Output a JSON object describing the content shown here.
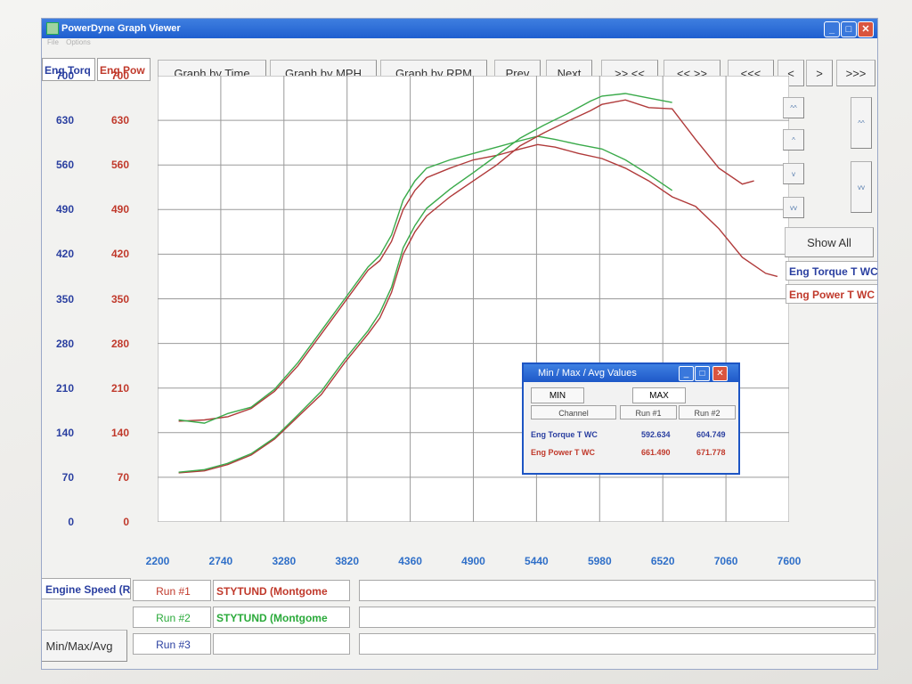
{
  "window": {
    "title": "PowerDyne Graph Viewer",
    "menu": [
      "File",
      "Options"
    ],
    "controls": {
      "minimize": "_",
      "maximize": "□",
      "close": "✕"
    }
  },
  "toolbar": {
    "graph_by_time": "Graph by Time",
    "graph_by_mph": "Graph by MPH",
    "graph_by_rpm": "Graph by RPM",
    "prev": "Prev",
    "next": "Next",
    "zoom_in": ">> <<",
    "zoom_out": "<< >>",
    "scroll_far_left": "<<<",
    "scroll_left": "<",
    "scroll_right": ">",
    "scroll_far_right": ">>>"
  },
  "axis_headers": {
    "left_torque": "Eng Torq",
    "left_power": "Eng Pow"
  },
  "side_controls": {
    "show_all": "Show All",
    "up_up_label": "^^",
    "up_label": "^",
    "down_label": "v",
    "down_down_label": "vv"
  },
  "channels": {
    "torque": "Eng Torque T WC",
    "power": "Eng Power T WC"
  },
  "bottom": {
    "x_channel": "Engine Speed (RI",
    "minmax_button": "Min/Max/Avg",
    "runs": [
      {
        "label": "Run #1",
        "file": "STYTUND (Montgome"
      },
      {
        "label": "Run #2",
        "file": "STYTUND (Montgome"
      },
      {
        "label": "Run #3",
        "file": ""
      }
    ]
  },
  "minmax": {
    "title": "Min / Max / Avg Values",
    "tab_min": "MIN",
    "tab_max": "MAX",
    "col_channel": "Channel",
    "col_run1": "Run #1",
    "col_run2": "Run #2",
    "rows": [
      {
        "channel": "Eng Torque T WC",
        "run1": "592.634",
        "run2": "604.749"
      },
      {
        "channel": "Eng Power T WC",
        "run1": "661.490",
        "run2": "671.778"
      }
    ]
  },
  "colors": {
    "torque_axis": "#2a3fa0",
    "power_axis": "#c0392b",
    "run1": "#b03a3a",
    "run2": "#3aaa4a",
    "grid": "#9a9a9a",
    "xtick": "#2f6fc8"
  },
  "chart_data": {
    "type": "line",
    "x_ticks": [
      "2200",
      "2740",
      "3280",
      "3820",
      "4360",
      "4900",
      "5440",
      "5980",
      "6520",
      "7060",
      "7600"
    ],
    "y_ticks_left_torque": [
      "0",
      "70",
      "140",
      "210",
      "280",
      "350",
      "420",
      "490",
      "560",
      "630",
      "700"
    ],
    "y_ticks_left_power": [
      "0",
      "70",
      "140",
      "210",
      "280",
      "350",
      "420",
      "490",
      "560",
      "630",
      "700"
    ],
    "xlim": [
      2200,
      7600
    ],
    "ylim": [
      0,
      700
    ],
    "grid": true,
    "series": [
      {
        "name": "Run #1",
        "channel": "Eng Torque T WC",
        "color": "#b03a3a",
        "points": [
          [
            2380,
            158
          ],
          [
            2600,
            160
          ],
          [
            2800,
            165
          ],
          [
            3000,
            178
          ],
          [
            3200,
            205
          ],
          [
            3400,
            245
          ],
          [
            3600,
            295
          ],
          [
            3800,
            345
          ],
          [
            4000,
            395
          ],
          [
            4100,
            410
          ],
          [
            4200,
            440
          ],
          [
            4300,
            490
          ],
          [
            4400,
            520
          ],
          [
            4500,
            540
          ],
          [
            4700,
            555
          ],
          [
            4900,
            568
          ],
          [
            5100,
            575
          ],
          [
            5300,
            585
          ],
          [
            5450,
            592
          ],
          [
            5600,
            588
          ],
          [
            5800,
            578
          ],
          [
            6000,
            570
          ],
          [
            6200,
            555
          ],
          [
            6400,
            535
          ],
          [
            6600,
            510
          ],
          [
            6800,
            495
          ],
          [
            7000,
            460
          ],
          [
            7200,
            415
          ],
          [
            7400,
            390
          ],
          [
            7500,
            385
          ]
        ]
      },
      {
        "name": "Run #2",
        "channel": "Eng Torque T WC",
        "color": "#3aaa4a",
        "points": [
          [
            2380,
            160
          ],
          [
            2600,
            155
          ],
          [
            2800,
            170
          ],
          [
            3000,
            180
          ],
          [
            3200,
            208
          ],
          [
            3400,
            250
          ],
          [
            3600,
            300
          ],
          [
            3800,
            350
          ],
          [
            4000,
            400
          ],
          [
            4100,
            418
          ],
          [
            4200,
            450
          ],
          [
            4300,
            505
          ],
          [
            4400,
            535
          ],
          [
            4500,
            555
          ],
          [
            4700,
            568
          ],
          [
            4900,
            578
          ],
          [
            5100,
            588
          ],
          [
            5300,
            598
          ],
          [
            5450,
            605
          ],
          [
            5600,
            600
          ],
          [
            5800,
            592
          ],
          [
            6000,
            585
          ],
          [
            6200,
            568
          ],
          [
            6400,
            545
          ],
          [
            6600,
            520
          ]
        ]
      },
      {
        "name": "Run #1",
        "channel": "Eng Power T WC",
        "color": "#b03a3a",
        "points": [
          [
            2380,
            77
          ],
          [
            2600,
            80
          ],
          [
            2800,
            90
          ],
          [
            3000,
            105
          ],
          [
            3200,
            130
          ],
          [
            3400,
            165
          ],
          [
            3600,
            200
          ],
          [
            3800,
            250
          ],
          [
            4000,
            295
          ],
          [
            4100,
            320
          ],
          [
            4200,
            360
          ],
          [
            4300,
            420
          ],
          [
            4400,
            455
          ],
          [
            4500,
            480
          ],
          [
            4700,
            510
          ],
          [
            4900,
            535
          ],
          [
            5100,
            560
          ],
          [
            5300,
            590
          ],
          [
            5500,
            610
          ],
          [
            5700,
            628
          ],
          [
            5900,
            645
          ],
          [
            6000,
            655
          ],
          [
            6200,
            662
          ],
          [
            6400,
            650
          ],
          [
            6600,
            648
          ],
          [
            6800,
            600
          ],
          [
            7000,
            555
          ],
          [
            7200,
            530
          ],
          [
            7300,
            535
          ]
        ]
      },
      {
        "name": "Run #2",
        "channel": "Eng Power T WC",
        "color": "#3aaa4a",
        "points": [
          [
            2380,
            78
          ],
          [
            2600,
            82
          ],
          [
            2800,
            92
          ],
          [
            3000,
            107
          ],
          [
            3200,
            132
          ],
          [
            3400,
            168
          ],
          [
            3600,
            205
          ],
          [
            3800,
            255
          ],
          [
            4000,
            300
          ],
          [
            4100,
            328
          ],
          [
            4200,
            368
          ],
          [
            4300,
            430
          ],
          [
            4400,
            465
          ],
          [
            4500,
            492
          ],
          [
            4700,
            522
          ],
          [
            4900,
            548
          ],
          [
            5100,
            575
          ],
          [
            5300,
            602
          ],
          [
            5500,
            622
          ],
          [
            5700,
            640
          ],
          [
            5900,
            660
          ],
          [
            6000,
            668
          ],
          [
            6200,
            672
          ],
          [
            6400,
            665
          ],
          [
            6600,
            658
          ]
        ]
      }
    ]
  }
}
